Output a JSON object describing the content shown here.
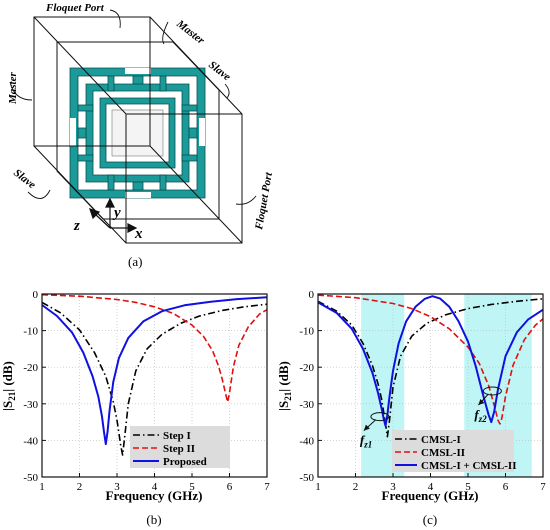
{
  "panel_a": {
    "caption": "(a)",
    "labels": {
      "floquet_top": "Floquet Port",
      "floquet_right": "Floquet Port",
      "master_left": "Master",
      "master_top": "Master",
      "slave_top": "Slave",
      "slave_left": "Slave",
      "axis_x": "x",
      "axis_y": "y",
      "axis_z": "z"
    },
    "colors": {
      "resonator": "#1a9a98",
      "frame": "#111111"
    }
  },
  "chart_data": [
    {
      "type": "line",
      "caption": "(b)",
      "xlabel": "Frequency (GHz)",
      "ylabel_main": "|S",
      "ylabel_sub": "21",
      "ylabel_unit": "| (dB)",
      "xlim": [
        1,
        7
      ],
      "ylim": [
        -50,
        0
      ],
      "xticks": [
        "1",
        "2",
        "3",
        "4",
        "5",
        "6",
        "7"
      ],
      "yticks": [
        "0",
        "-10",
        "-20",
        "-30",
        "-40",
        "-50"
      ],
      "legend_position": "bottom-center",
      "series": [
        {
          "name": "Step I",
          "color": "#000000",
          "dash": "dashdot",
          "x": [
            1.0,
            1.5,
            2.0,
            2.4,
            2.7,
            2.9,
            3.0,
            3.1,
            3.15,
            3.2,
            3.3,
            3.5,
            3.8,
            4.2,
            4.7,
            5.2,
            5.8,
            6.4,
            7.0
          ],
          "y": [
            -2.3,
            -5.2,
            -9.8,
            -16.0,
            -22.5,
            -29.5,
            -34.5,
            -41.5,
            -44.0,
            -39.5,
            -30.0,
            -21.0,
            -15.0,
            -11.0,
            -8.0,
            -6.0,
            -4.5,
            -3.5,
            -2.8
          ]
        },
        {
          "name": "Step II",
          "color": "#e01010",
          "dash": "dash",
          "x": [
            1.0,
            2.0,
            3.0,
            3.5,
            4.0,
            4.5,
            5.0,
            5.3,
            5.55,
            5.7,
            5.8,
            5.9,
            5.95,
            6.0,
            6.1,
            6.25,
            6.5,
            6.8,
            7.0
          ],
          "y": [
            -0.2,
            -0.6,
            -1.5,
            -2.3,
            -3.5,
            -5.3,
            -8.5,
            -11.5,
            -15.5,
            -19.5,
            -23.0,
            -27.5,
            -29.5,
            -27.0,
            -20.0,
            -14.0,
            -9.0,
            -5.5,
            -4.3
          ]
        },
        {
          "name": "Proposed",
          "color": "#1010e0",
          "dash": "solid",
          "x": [
            1.0,
            1.4,
            1.8,
            2.1,
            2.35,
            2.5,
            2.6,
            2.65,
            2.7,
            2.75,
            2.8,
            2.9,
            3.05,
            3.3,
            3.7,
            4.2,
            4.8,
            5.5,
            6.2,
            7.0
          ],
          "y": [
            -3.0,
            -6.0,
            -10.5,
            -16.0,
            -22.5,
            -28.0,
            -33.5,
            -37.5,
            -41.0,
            -37.5,
            -32.0,
            -24.0,
            -17.5,
            -12.0,
            -7.5,
            -4.7,
            -3.1,
            -2.1,
            -1.4,
            -0.9
          ]
        }
      ]
    },
    {
      "type": "line",
      "caption": "(c)",
      "xlabel": "Frequency (GHz)",
      "ylabel_main": "|S",
      "ylabel_sub": "21",
      "ylabel_unit": "| (dB)",
      "xlim": [
        1,
        7
      ],
      "ylim": [
        -50,
        0
      ],
      "xticks": [
        "1",
        "2",
        "3",
        "4",
        "5",
        "6",
        "7"
      ],
      "yticks": [
        "0",
        "-10",
        "-20",
        "-30",
        "-40",
        "-50"
      ],
      "legend_position": "bottom-center",
      "bands": [
        {
          "x0": 2.15,
          "x1": 3.3,
          "color": "#bff5f5"
        },
        {
          "x0": 4.9,
          "x1": 6.7,
          "color": "#bff5f5"
        }
      ],
      "annotations": [
        {
          "text": "f",
          "sub": "z1",
          "x": 2.65,
          "y": -33.5
        },
        {
          "text": "f",
          "sub": "z2",
          "x": 5.65,
          "y": -26.5
        }
      ],
      "series": [
        {
          "name": "CMSL-I",
          "color": "#000000",
          "dash": "dashdot",
          "x": [
            1.0,
            1.5,
            1.9,
            2.2,
            2.45,
            2.6,
            2.7,
            2.8,
            2.85,
            2.9,
            3.0,
            3.2,
            3.5,
            3.9,
            4.4,
            5.0,
            5.6,
            6.3,
            7.0
          ],
          "y": [
            -2.0,
            -4.7,
            -8.5,
            -13.5,
            -19.5,
            -24.5,
            -29.0,
            -35.5,
            -39.0,
            -35.0,
            -25.5,
            -17.0,
            -11.5,
            -8.0,
            -5.7,
            -4.0,
            -2.9,
            -2.0,
            -1.3
          ]
        },
        {
          "name": "CMSL-II",
          "color": "#e01010",
          "dash": "dash",
          "x": [
            1.0,
            2.0,
            3.0,
            3.5,
            4.0,
            4.5,
            5.0,
            5.3,
            5.55,
            5.7,
            5.8,
            5.85,
            5.9,
            6.0,
            6.2,
            6.5,
            6.8,
            7.0
          ],
          "y": [
            -0.3,
            -1.0,
            -2.6,
            -4.0,
            -6.2,
            -9.5,
            -14.5,
            -19.0,
            -25.0,
            -30.5,
            -34.5,
            -35.5,
            -34.0,
            -28.0,
            -19.5,
            -12.5,
            -8.5,
            -6.8
          ]
        },
        {
          "name": "CMSL-I + CMSL-II",
          "color": "#1010e0",
          "dash": "solid",
          "x": [
            1.0,
            1.5,
            1.9,
            2.2,
            2.45,
            2.6,
            2.7,
            2.75,
            2.8,
            2.85,
            2.9,
            3.0,
            3.15,
            3.35,
            3.6,
            3.85,
            4.05,
            4.25,
            4.5,
            4.75,
            5.0,
            5.2,
            5.4,
            5.55,
            5.62,
            5.7,
            5.8,
            6.0,
            6.3,
            6.6,
            7.0
          ],
          "y": [
            -2.3,
            -5.2,
            -9.5,
            -15.0,
            -21.5,
            -27.0,
            -31.5,
            -34.0,
            -36.0,
            -33.0,
            -28.5,
            -21.0,
            -13.5,
            -7.5,
            -3.5,
            -1.3,
            -0.6,
            -1.2,
            -3.5,
            -7.5,
            -13.0,
            -19.5,
            -27.5,
            -33.0,
            -35.0,
            -32.0,
            -26.0,
            -17.0,
            -10.5,
            -7.0,
            -4.3
          ]
        }
      ]
    }
  ]
}
